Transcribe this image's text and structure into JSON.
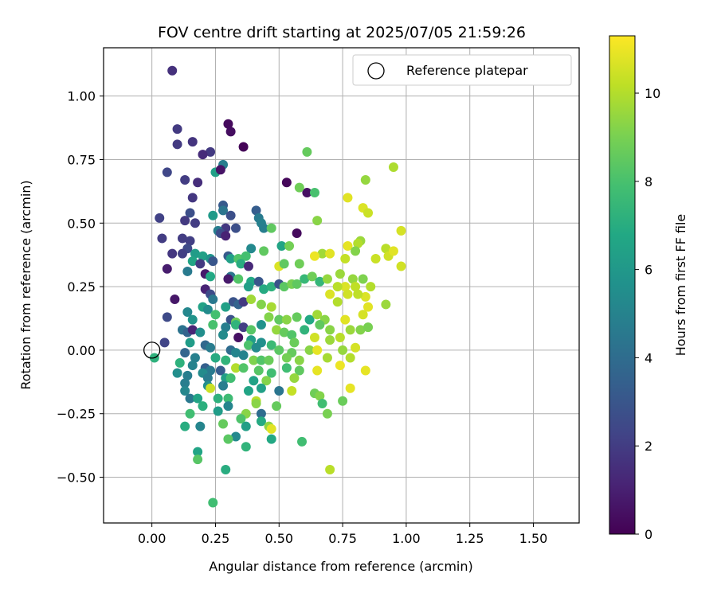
{
  "chart_data": {
    "type": "scatter",
    "title": "FOV centre drift starting at 2025/07/05 21:59:26",
    "xlabel": "Angular distance from reference (arcmin)",
    "ylabel": "Rotation from reference (arcmin)",
    "xlim": [
      -0.19,
      1.68
    ],
    "ylim": [
      -0.68,
      1.19
    ],
    "xticks": [
      0.0,
      0.25,
      0.5,
      0.75,
      1.0,
      1.25,
      1.5
    ],
    "xtick_labels": [
      "0.00",
      "0.25",
      "0.50",
      "0.75",
      "1.00",
      "1.25",
      "1.50"
    ],
    "yticks": [
      -0.5,
      -0.25,
      0.0,
      0.25,
      0.5,
      0.75,
      1.0
    ],
    "ytick_labels": [
      "−0.50",
      "−0.25",
      "0.00",
      "0.25",
      "0.50",
      "0.75",
      "1.00"
    ],
    "grid": true,
    "legend": {
      "placement": "top-right",
      "entries": [
        "Reference platepar"
      ]
    },
    "reference_point": {
      "x": 0.0,
      "y": 0.0
    },
    "colorbar": {
      "label": "Hours from first FF file",
      "range": [
        0,
        11.3
      ],
      "colormap": "viridis",
      "ticks": [
        0,
        2,
        4,
        6,
        8,
        10
      ],
      "tick_labels": [
        "0",
        "2",
        "4",
        "6",
        "8",
        "10"
      ]
    },
    "points": [
      [
        0.08,
        1.1,
        1.6
      ],
      [
        0.3,
        0.89,
        0.3
      ],
      [
        0.1,
        0.87,
        1.9
      ],
      [
        0.31,
        0.86,
        0.4
      ],
      [
        0.16,
        0.82,
        1.7
      ],
      [
        0.1,
        0.81,
        1.9
      ],
      [
        0.36,
        0.8,
        0.1
      ],
      [
        0.23,
        0.78,
        1.9
      ],
      [
        0.2,
        0.77,
        1.4
      ],
      [
        0.28,
        0.73,
        4.8
      ],
      [
        0.06,
        0.7,
        2.4
      ],
      [
        0.25,
        0.7,
        6.4
      ],
      [
        0.27,
        0.71,
        0.6
      ],
      [
        0.13,
        0.67,
        2.0
      ],
      [
        0.18,
        0.66,
        1.5
      ],
      [
        0.53,
        0.66,
        0.2
      ],
      [
        0.61,
        0.62,
        0.5
      ],
      [
        0.58,
        0.64,
        8.8
      ],
      [
        0.64,
        0.62,
        8.0
      ],
      [
        0.16,
        0.6,
        1.8
      ],
      [
        0.28,
        0.57,
        3.2
      ],
      [
        0.41,
        0.55,
        3.3
      ],
      [
        0.28,
        0.55,
        4.4
      ],
      [
        0.03,
        0.52,
        2.2
      ],
      [
        0.15,
        0.54,
        2.7
      ],
      [
        0.24,
        0.53,
        6.1
      ],
      [
        0.31,
        0.53,
        2.7
      ],
      [
        0.42,
        0.52,
        4.6
      ],
      [
        0.43,
        0.5,
        4.9
      ],
      [
        0.13,
        0.51,
        1.9
      ],
      [
        0.17,
        0.5,
        2.0
      ],
      [
        0.29,
        0.48,
        1.8
      ],
      [
        0.33,
        0.48,
        2.7
      ],
      [
        0.44,
        0.48,
        4.8
      ],
      [
        0.47,
        0.48,
        8.5
      ],
      [
        0.26,
        0.47,
        4.8
      ],
      [
        0.27,
        0.46,
        2.6
      ],
      [
        0.29,
        0.45,
        1.1
      ],
      [
        0.04,
        0.44,
        2.0
      ],
      [
        0.12,
        0.44,
        2.0
      ],
      [
        0.15,
        0.43,
        2.1
      ],
      [
        0.14,
        0.4,
        2.5
      ],
      [
        0.39,
        0.4,
        5.3
      ],
      [
        0.51,
        0.41,
        6.6
      ],
      [
        0.57,
        0.46,
        0.3
      ],
      [
        0.54,
        0.41,
        8.9
      ],
      [
        0.08,
        0.38,
        1.8
      ],
      [
        0.12,
        0.38,
        2.1
      ],
      [
        0.17,
        0.38,
        6.2
      ],
      [
        0.2,
        0.37,
        6.4
      ],
      [
        0.23,
        0.36,
        5.8
      ],
      [
        0.24,
        0.35,
        3.0
      ],
      [
        0.3,
        0.37,
        3.2
      ],
      [
        0.31,
        0.36,
        6.4
      ],
      [
        0.34,
        0.36,
        8.2
      ],
      [
        0.37,
        0.37,
        7.9
      ],
      [
        0.44,
        0.39,
        8.5
      ],
      [
        0.16,
        0.35,
        6.6
      ],
      [
        0.19,
        0.34,
        1.9
      ],
      [
        0.35,
        0.34,
        7.0
      ],
      [
        0.38,
        0.33,
        1.3
      ],
      [
        0.06,
        0.32,
        0.9
      ],
      [
        0.14,
        0.31,
        4.6
      ],
      [
        0.5,
        0.33,
        10.7
      ],
      [
        0.52,
        0.34,
        8.5
      ],
      [
        0.58,
        0.34,
        8.8
      ],
      [
        0.21,
        0.3,
        0.8
      ],
      [
        0.23,
        0.29,
        6.8
      ],
      [
        0.31,
        0.29,
        4.4
      ],
      [
        0.34,
        0.28,
        8.2
      ],
      [
        0.39,
        0.27,
        6.8
      ],
      [
        0.42,
        0.27,
        3.0
      ],
      [
        0.3,
        0.28,
        0.8
      ],
      [
        0.38,
        0.25,
        6.3
      ],
      [
        0.44,
        0.24,
        6.9
      ],
      [
        0.47,
        0.25,
        7.2
      ],
      [
        0.5,
        0.26,
        2.9
      ],
      [
        0.52,
        0.25,
        8.4
      ],
      [
        0.55,
        0.26,
        9.0
      ],
      [
        0.57,
        0.26,
        8.5
      ],
      [
        0.6,
        0.28,
        7.5
      ],
      [
        0.63,
        0.29,
        8.8
      ],
      [
        0.66,
        0.27,
        7.4
      ],
      [
        0.69,
        0.28,
        9.5
      ],
      [
        0.21,
        0.24,
        1.1
      ],
      [
        0.23,
        0.22,
        2.6
      ],
      [
        0.24,
        0.2,
        4.5
      ],
      [
        0.32,
        0.19,
        2.9
      ],
      [
        0.34,
        0.18,
        3.6
      ],
      [
        0.36,
        0.19,
        1.9
      ],
      [
        0.39,
        0.2,
        9.7
      ],
      [
        0.43,
        0.18,
        9.2
      ],
      [
        0.47,
        0.17,
        9.8
      ],
      [
        0.09,
        0.2,
        0.7
      ],
      [
        0.2,
        0.17,
        6.5
      ],
      [
        0.22,
        0.16,
        5.4
      ],
      [
        0.29,
        0.17,
        6.4
      ],
      [
        0.25,
        0.14,
        7.9
      ],
      [
        0.31,
        0.12,
        2.8
      ],
      [
        0.33,
        0.11,
        8.8
      ],
      [
        0.46,
        0.13,
        9.2
      ],
      [
        0.5,
        0.12,
        8.5
      ],
      [
        0.53,
        0.12,
        9.3
      ],
      [
        0.57,
        0.13,
        8.6
      ],
      [
        0.62,
        0.12,
        6.8
      ],
      [
        0.65,
        0.14,
        9.7
      ],
      [
        0.68,
        0.12,
        9.3
      ],
      [
        0.06,
        0.13,
        2.5
      ],
      [
        0.14,
        0.15,
        5.2
      ],
      [
        0.16,
        0.12,
        5.8
      ],
      [
        0.24,
        0.1,
        8.0
      ],
      [
        0.29,
        0.09,
        4.8
      ],
      [
        0.33,
        0.1,
        7.3
      ],
      [
        0.36,
        0.09,
        2.1
      ],
      [
        0.39,
        0.08,
        8.3
      ],
      [
        0.43,
        0.1,
        5.7
      ],
      [
        0.49,
        0.08,
        9.5
      ],
      [
        0.52,
        0.07,
        8.6
      ],
      [
        0.55,
        0.06,
        8.2
      ],
      [
        0.6,
        0.08,
        7.3
      ],
      [
        0.66,
        0.1,
        8.5
      ],
      [
        0.7,
        0.08,
        9.3
      ],
      [
        0.12,
        0.08,
        4.3
      ],
      [
        0.14,
        0.07,
        3.6
      ],
      [
        0.16,
        0.08,
        1.2
      ],
      [
        0.19,
        0.07,
        5.5
      ],
      [
        0.28,
        0.06,
        5.4
      ],
      [
        0.34,
        0.05,
        0.5
      ],
      [
        0.39,
        0.04,
        6.3
      ],
      [
        0.43,
        0.03,
        5.6
      ],
      [
        0.47,
        0.02,
        7.6
      ],
      [
        0.56,
        0.03,
        8.7
      ],
      [
        0.64,
        0.05,
        10.5
      ],
      [
        0.7,
        0.04,
        9.6
      ],
      [
        0.74,
        0.05,
        10.1
      ],
      [
        0.05,
        0.03,
        2.3
      ],
      [
        0.15,
        0.03,
        6.2
      ],
      [
        0.21,
        0.02,
        3.8
      ],
      [
        0.23,
        0.01,
        4.7
      ],
      [
        0.31,
        0.0,
        4.0
      ],
      [
        0.33,
        -0.01,
        5.1
      ],
      [
        0.38,
        0.02,
        8.1
      ],
      [
        0.41,
        0.01,
        5.4
      ],
      [
        0.5,
        0.0,
        8.4
      ],
      [
        0.55,
        -0.01,
        8.6
      ],
      [
        0.62,
        0.0,
        9.3
      ],
      [
        0.65,
        0.0,
        10.9
      ],
      [
        0.75,
        0.0,
        9.5
      ],
      [
        0.8,
        0.01,
        10.6
      ],
      [
        0.13,
        -0.01,
        3.7
      ],
      [
        0.17,
        -0.03,
        4.9
      ],
      [
        0.25,
        -0.03,
        6.9
      ],
      [
        0.29,
        -0.04,
        7.3
      ],
      [
        0.36,
        -0.02,
        5.0
      ],
      [
        0.4,
        -0.04,
        9.1
      ],
      [
        0.43,
        -0.04,
        8.2
      ],
      [
        0.46,
        -0.04,
        8.7
      ],
      [
        0.53,
        -0.03,
        8.9
      ],
      [
        0.58,
        -0.04,
        9.3
      ],
      [
        0.69,
        -0.03,
        9.8
      ],
      [
        0.78,
        -0.03,
        10.0
      ],
      [
        0.01,
        -0.03,
        7.2
      ],
      [
        0.11,
        -0.05,
        7.2
      ],
      [
        0.16,
        -0.06,
        5.0
      ],
      [
        0.21,
        -0.07,
        3.4
      ],
      [
        0.23,
        -0.08,
        4.6
      ],
      [
        0.27,
        -0.08,
        3.3
      ],
      [
        0.33,
        -0.07,
        10.0
      ],
      [
        0.36,
        -0.07,
        8.2
      ],
      [
        0.42,
        -0.08,
        8.3
      ],
      [
        0.47,
        -0.09,
        7.8
      ],
      [
        0.53,
        -0.07,
        7.8
      ],
      [
        0.58,
        -0.08,
        8.5
      ],
      [
        0.65,
        -0.08,
        10.9
      ],
      [
        0.74,
        -0.06,
        11.0
      ],
      [
        0.84,
        -0.08,
        10.9
      ],
      [
        0.1,
        -0.09,
        5.5
      ],
      [
        0.14,
        -0.1,
        4.8
      ],
      [
        0.2,
        -0.09,
        5.4
      ],
      [
        0.22,
        -0.11,
        4.7
      ],
      [
        0.29,
        -0.11,
        6.3
      ],
      [
        0.31,
        -0.11,
        7.8
      ],
      [
        0.4,
        -0.12,
        6.5
      ],
      [
        0.45,
        -0.12,
        9.2
      ],
      [
        0.56,
        -0.11,
        9.5
      ],
      [
        0.13,
        -0.13,
        4.8
      ],
      [
        0.22,
        -0.14,
        5.5
      ],
      [
        0.28,
        -0.14,
        4.8
      ],
      [
        0.43,
        -0.15,
        6.4
      ],
      [
        0.5,
        -0.16,
        4.4
      ],
      [
        0.55,
        -0.16,
        10.3
      ],
      [
        0.64,
        -0.17,
        8.8
      ],
      [
        0.13,
        -0.16,
        5.2
      ],
      [
        0.23,
        -0.15,
        10.4
      ],
      [
        0.38,
        -0.16,
        6.6
      ],
      [
        0.66,
        -0.18,
        9.2
      ],
      [
        0.78,
        -0.15,
        10.9
      ],
      [
        0.15,
        -0.19,
        4.5
      ],
      [
        0.18,
        -0.19,
        6.6
      ],
      [
        0.26,
        -0.19,
        7.2
      ],
      [
        0.3,
        -0.19,
        7.7
      ],
      [
        0.41,
        -0.2,
        10.1
      ],
      [
        0.41,
        -0.21,
        9.3
      ],
      [
        0.49,
        -0.22,
        8.6
      ],
      [
        0.2,
        -0.22,
        7.1
      ],
      [
        0.3,
        -0.22,
        5.1
      ],
      [
        0.67,
        -0.21,
        7.8
      ],
      [
        0.75,
        -0.2,
        8.7
      ],
      [
        0.15,
        -0.25,
        7.8
      ],
      [
        0.43,
        -0.25,
        4.0
      ],
      [
        0.26,
        -0.24,
        6.2
      ],
      [
        0.37,
        -0.25,
        9.3
      ],
      [
        0.69,
        -0.25,
        9.0
      ],
      [
        0.35,
        -0.27,
        8.1
      ],
      [
        0.43,
        -0.28,
        6.9
      ],
      [
        0.13,
        -0.3,
        7.0
      ],
      [
        0.19,
        -0.3,
        5.1
      ],
      [
        0.28,
        -0.29,
        8.6
      ],
      [
        0.37,
        -0.3,
        6.3
      ],
      [
        0.46,
        -0.3,
        9.4
      ],
      [
        0.47,
        -0.31,
        10.8
      ],
      [
        0.33,
        -0.34,
        5.3
      ],
      [
        0.3,
        -0.35,
        8.4
      ],
      [
        0.47,
        -0.35,
        6.8
      ],
      [
        0.59,
        -0.36,
        7.8
      ],
      [
        0.37,
        -0.38,
        7.3
      ],
      [
        0.18,
        -0.4,
        6.6
      ],
      [
        0.18,
        -0.43,
        8.3
      ],
      [
        0.29,
        -0.47,
        7.0
      ],
      [
        0.7,
        -0.47,
        10.1
      ],
      [
        0.24,
        -0.6,
        7.8
      ],
      [
        0.61,
        0.78,
        8.6
      ],
      [
        0.84,
        0.67,
        9.5
      ],
      [
        0.95,
        0.72,
        9.9
      ],
      [
        0.65,
        0.51,
        9.3
      ],
      [
        0.77,
        0.6,
        10.8
      ],
      [
        0.83,
        0.56,
        10.7
      ],
      [
        0.85,
        0.54,
        10.4
      ],
      [
        0.82,
        0.43,
        9.6
      ],
      [
        0.81,
        0.42,
        10.0
      ],
      [
        0.77,
        0.41,
        10.9
      ],
      [
        0.98,
        0.47,
        10.6
      ],
      [
        0.67,
        0.38,
        9.7
      ],
      [
        0.7,
        0.38,
        10.8
      ],
      [
        0.76,
        0.36,
        10.3
      ],
      [
        0.8,
        0.39,
        9.2
      ],
      [
        0.64,
        0.37,
        11.0
      ],
      [
        0.88,
        0.36,
        10.4
      ],
      [
        0.92,
        0.4,
        10.1
      ],
      [
        0.93,
        0.37,
        10.5
      ],
      [
        0.95,
        0.39,
        10.8
      ],
      [
        0.98,
        0.33,
        10.5
      ],
      [
        0.74,
        0.3,
        9.6
      ],
      [
        0.79,
        0.28,
        9.5
      ],
      [
        0.83,
        0.28,
        9.1
      ],
      [
        0.76,
        0.25,
        10.7
      ],
      [
        0.7,
        0.22,
        10.7
      ],
      [
        0.73,
        0.25,
        10.1
      ],
      [
        0.8,
        0.25,
        10.2
      ],
      [
        0.86,
        0.25,
        10.0
      ],
      [
        0.84,
        0.21,
        10.7
      ],
      [
        0.81,
        0.22,
        10.2
      ],
      [
        0.73,
        0.19,
        10.0
      ],
      [
        0.77,
        0.22,
        10.5
      ],
      [
        0.92,
        0.18,
        9.6
      ],
      [
        0.85,
        0.17,
        10.8
      ],
      [
        0.83,
        0.14,
        10.6
      ],
      [
        0.76,
        0.12,
        10.8
      ],
      [
        0.82,
        0.08,
        9.2
      ],
      [
        0.85,
        0.09,
        9.0
      ],
      [
        0.78,
        0.08,
        9.6
      ]
    ]
  }
}
